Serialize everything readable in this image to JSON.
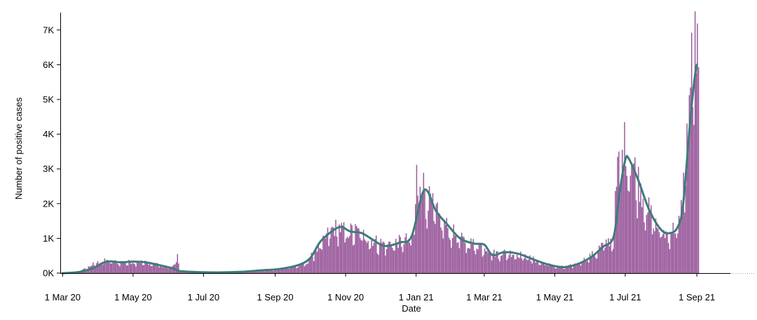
{
  "colors": {
    "bar": "#9b5d9d",
    "line": "#3d7c79",
    "axis": "#000000",
    "baseline_dotted": "#9a9a9a"
  },
  "chart_data": {
    "type": "bar",
    "title": "",
    "xlabel": "Date",
    "ylabel": "Number of positive cases",
    "x_range": [
      "2020-02-28",
      "2021-09-30"
    ],
    "ylim": [
      0,
      7500
    ],
    "grid": false,
    "legend": "none",
    "x_ticks": [
      {
        "date": "2020-03-01",
        "label": "1 Mar 20"
      },
      {
        "date": "2020-05-01",
        "label": "1 May 20"
      },
      {
        "date": "2020-07-01",
        "label": "1 Jul 20"
      },
      {
        "date": "2020-09-01",
        "label": "1 Sep 20"
      },
      {
        "date": "2020-11-01",
        "label": "1 Nov 20"
      },
      {
        "date": "2021-01-01",
        "label": "1 Jan 21"
      },
      {
        "date": "2021-03-01",
        "label": "1 Mar 21"
      },
      {
        "date": "2021-05-01",
        "label": "1 May 21"
      },
      {
        "date": "2021-07-01",
        "label": "1 Jul 21"
      },
      {
        "date": "2021-09-01",
        "label": "1 Sep 21"
      }
    ],
    "y_ticks": [
      {
        "value": 0,
        "label": "0K"
      },
      {
        "value": 1000,
        "label": "1K"
      },
      {
        "value": 2000,
        "label": "2K"
      },
      {
        "value": 3000,
        "label": "3K"
      },
      {
        "value": 4000,
        "label": "4K"
      },
      {
        "value": 5000,
        "label": "5K"
      },
      {
        "value": 6000,
        "label": "6K"
      },
      {
        "value": 7000,
        "label": "7K"
      }
    ],
    "series": [
      {
        "kind": "bar",
        "daily_anchors": [
          [
            "2020-03-01",
            0
          ],
          [
            "2020-03-10",
            20
          ],
          [
            "2020-03-20",
            120
          ],
          [
            "2020-03-28",
            280
          ],
          [
            "2020-04-05",
            360
          ],
          [
            "2020-04-15",
            330
          ],
          [
            "2020-04-25",
            320
          ],
          [
            "2020-05-05",
            340
          ],
          [
            "2020-05-15",
            300
          ],
          [
            "2020-05-25",
            220
          ],
          [
            "2020-06-03",
            150
          ],
          [
            "2020-06-08",
            480
          ],
          [
            "2020-06-10",
            60
          ],
          [
            "2020-06-20",
            40
          ],
          [
            "2020-07-01",
            25
          ],
          [
            "2020-07-20",
            20
          ],
          [
            "2020-08-05",
            40
          ],
          [
            "2020-08-20",
            70
          ],
          [
            "2020-09-01",
            100
          ],
          [
            "2020-09-10",
            160
          ],
          [
            "2020-09-20",
            220
          ],
          [
            "2020-09-28",
            300
          ],
          [
            "2020-10-05",
            650
          ],
          [
            "2020-10-12",
            900
          ],
          [
            "2020-10-18",
            1250
          ],
          [
            "2020-10-25",
            1350
          ],
          [
            "2020-11-01",
            1200
          ],
          [
            "2020-11-08",
            1250
          ],
          [
            "2020-11-15",
            1150
          ],
          [
            "2020-11-25",
            950
          ],
          [
            "2020-12-05",
            850
          ],
          [
            "2020-12-15",
            900
          ],
          [
            "2020-12-25",
            1000
          ],
          [
            "2020-12-30",
            1100
          ],
          [
            "2021-01-01",
            2900
          ],
          [
            "2021-01-04",
            2800
          ],
          [
            "2021-01-08",
            2450
          ],
          [
            "2021-01-12",
            2100
          ],
          [
            "2021-01-20",
            1650
          ],
          [
            "2021-01-30",
            1250
          ],
          [
            "2021-02-10",
            950
          ],
          [
            "2021-02-20",
            850
          ],
          [
            "2021-03-01",
            800
          ],
          [
            "2021-03-08",
            580
          ],
          [
            "2021-03-18",
            600
          ],
          [
            "2021-03-28",
            580
          ],
          [
            "2021-04-08",
            450
          ],
          [
            "2021-04-20",
            300
          ],
          [
            "2021-05-01",
            200
          ],
          [
            "2021-05-10",
            170
          ],
          [
            "2021-05-20",
            280
          ],
          [
            "2021-06-01",
            500
          ],
          [
            "2021-06-10",
            800
          ],
          [
            "2021-06-20",
            1000
          ],
          [
            "2021-06-24",
            3000
          ],
          [
            "2021-06-30",
            3700
          ],
          [
            "2021-07-05",
            3400
          ],
          [
            "2021-07-12",
            2700
          ],
          [
            "2021-07-20",
            1900
          ],
          [
            "2021-07-28",
            1350
          ],
          [
            "2021-08-05",
            1150
          ],
          [
            "2021-08-12",
            1300
          ],
          [
            "2021-08-17",
            1500
          ],
          [
            "2021-08-22",
            3300
          ],
          [
            "2021-08-26",
            5600
          ],
          [
            "2021-08-29",
            6800
          ],
          [
            "2021-09-01",
            6200
          ],
          [
            "2021-09-02",
            5600
          ]
        ]
      },
      {
        "kind": "line",
        "points": [
          [
            "2020-03-01",
            0
          ],
          [
            "2020-03-15",
            30
          ],
          [
            "2020-03-28",
            150
          ],
          [
            "2020-04-08",
            330
          ],
          [
            "2020-04-20",
            310
          ],
          [
            "2020-05-01",
            330
          ],
          [
            "2020-05-12",
            310
          ],
          [
            "2020-05-25",
            220
          ],
          [
            "2020-06-05",
            130
          ],
          [
            "2020-06-10",
            60
          ],
          [
            "2020-06-25",
            30
          ],
          [
            "2020-07-15",
            20
          ],
          [
            "2020-08-05",
            40
          ],
          [
            "2020-08-20",
            80
          ],
          [
            "2020-09-05",
            120
          ],
          [
            "2020-09-20",
            220
          ],
          [
            "2020-10-01",
            420
          ],
          [
            "2020-10-10",
            900
          ],
          [
            "2020-10-20",
            1200
          ],
          [
            "2020-10-28",
            1330
          ],
          [
            "2020-11-05",
            1200
          ],
          [
            "2020-11-15",
            1150
          ],
          [
            "2020-11-25",
            950
          ],
          [
            "2020-12-05",
            780
          ],
          [
            "2020-12-18",
            880
          ],
          [
            "2020-12-28",
            1050
          ],
          [
            "2021-01-06",
            2250
          ],
          [
            "2021-01-11",
            2350
          ],
          [
            "2021-01-18",
            1800
          ],
          [
            "2021-01-28",
            1400
          ],
          [
            "2021-02-08",
            1000
          ],
          [
            "2021-02-20",
            850
          ],
          [
            "2021-03-01",
            820
          ],
          [
            "2021-03-08",
            520
          ],
          [
            "2021-03-18",
            600
          ],
          [
            "2021-03-30",
            560
          ],
          [
            "2021-04-12",
            400
          ],
          [
            "2021-04-25",
            250
          ],
          [
            "2021-05-08",
            170
          ],
          [
            "2021-05-20",
            250
          ],
          [
            "2021-06-01",
            450
          ],
          [
            "2021-06-12",
            760
          ],
          [
            "2021-06-21",
            1050
          ],
          [
            "2021-06-26",
            2300
          ],
          [
            "2021-07-01",
            3250
          ],
          [
            "2021-07-04",
            3300
          ],
          [
            "2021-07-12",
            2700
          ],
          [
            "2021-07-22",
            1800
          ],
          [
            "2021-08-01",
            1250
          ],
          [
            "2021-08-08",
            1150
          ],
          [
            "2021-08-15",
            1300
          ],
          [
            "2021-08-20",
            1950
          ],
          [
            "2021-08-26",
            4300
          ],
          [
            "2021-08-30",
            5600
          ],
          [
            "2021-09-01",
            6000
          ]
        ]
      }
    ]
  }
}
